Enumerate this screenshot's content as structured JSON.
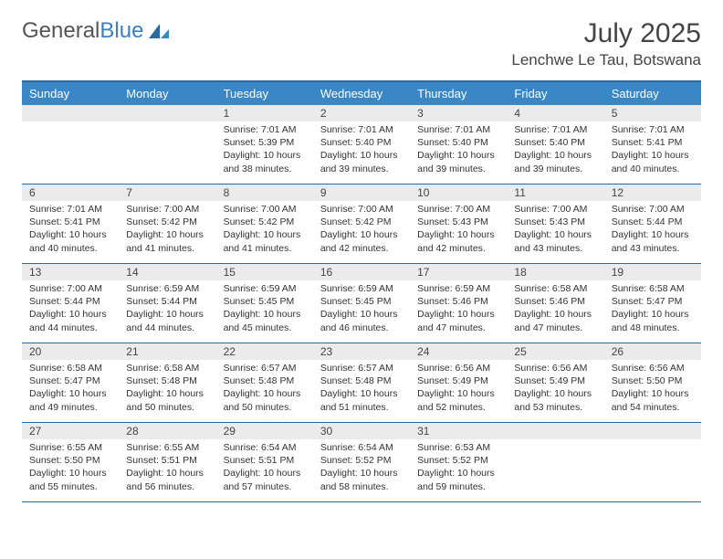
{
  "brand": {
    "part1": "General",
    "part2": "Blue"
  },
  "title": "July 2025",
  "location": "Lenchwe Le Tau, Botswana",
  "colors": {
    "header_bg": "#3a87c7",
    "header_rule": "#2b6aa0",
    "daynum_bg": "#ebebeb",
    "brand_blue": "#3a7fc4"
  },
  "weekdays": [
    "Sunday",
    "Monday",
    "Tuesday",
    "Wednesday",
    "Thursday",
    "Friday",
    "Saturday"
  ],
  "weeks": [
    [
      {
        "n": "",
        "sr": "",
        "ss": "",
        "dl": ""
      },
      {
        "n": "",
        "sr": "",
        "ss": "",
        "dl": ""
      },
      {
        "n": "1",
        "sr": "Sunrise: 7:01 AM",
        "ss": "Sunset: 5:39 PM",
        "dl": "Daylight: 10 hours and 38 minutes."
      },
      {
        "n": "2",
        "sr": "Sunrise: 7:01 AM",
        "ss": "Sunset: 5:40 PM",
        "dl": "Daylight: 10 hours and 39 minutes."
      },
      {
        "n": "3",
        "sr": "Sunrise: 7:01 AM",
        "ss": "Sunset: 5:40 PM",
        "dl": "Daylight: 10 hours and 39 minutes."
      },
      {
        "n": "4",
        "sr": "Sunrise: 7:01 AM",
        "ss": "Sunset: 5:40 PM",
        "dl": "Daylight: 10 hours and 39 minutes."
      },
      {
        "n": "5",
        "sr": "Sunrise: 7:01 AM",
        "ss": "Sunset: 5:41 PM",
        "dl": "Daylight: 10 hours and 40 minutes."
      }
    ],
    [
      {
        "n": "6",
        "sr": "Sunrise: 7:01 AM",
        "ss": "Sunset: 5:41 PM",
        "dl": "Daylight: 10 hours and 40 minutes."
      },
      {
        "n": "7",
        "sr": "Sunrise: 7:00 AM",
        "ss": "Sunset: 5:42 PM",
        "dl": "Daylight: 10 hours and 41 minutes."
      },
      {
        "n": "8",
        "sr": "Sunrise: 7:00 AM",
        "ss": "Sunset: 5:42 PM",
        "dl": "Daylight: 10 hours and 41 minutes."
      },
      {
        "n": "9",
        "sr": "Sunrise: 7:00 AM",
        "ss": "Sunset: 5:42 PM",
        "dl": "Daylight: 10 hours and 42 minutes."
      },
      {
        "n": "10",
        "sr": "Sunrise: 7:00 AM",
        "ss": "Sunset: 5:43 PM",
        "dl": "Daylight: 10 hours and 42 minutes."
      },
      {
        "n": "11",
        "sr": "Sunrise: 7:00 AM",
        "ss": "Sunset: 5:43 PM",
        "dl": "Daylight: 10 hours and 43 minutes."
      },
      {
        "n": "12",
        "sr": "Sunrise: 7:00 AM",
        "ss": "Sunset: 5:44 PM",
        "dl": "Daylight: 10 hours and 43 minutes."
      }
    ],
    [
      {
        "n": "13",
        "sr": "Sunrise: 7:00 AM",
        "ss": "Sunset: 5:44 PM",
        "dl": "Daylight: 10 hours and 44 minutes."
      },
      {
        "n": "14",
        "sr": "Sunrise: 6:59 AM",
        "ss": "Sunset: 5:44 PM",
        "dl": "Daylight: 10 hours and 44 minutes."
      },
      {
        "n": "15",
        "sr": "Sunrise: 6:59 AM",
        "ss": "Sunset: 5:45 PM",
        "dl": "Daylight: 10 hours and 45 minutes."
      },
      {
        "n": "16",
        "sr": "Sunrise: 6:59 AM",
        "ss": "Sunset: 5:45 PM",
        "dl": "Daylight: 10 hours and 46 minutes."
      },
      {
        "n": "17",
        "sr": "Sunrise: 6:59 AM",
        "ss": "Sunset: 5:46 PM",
        "dl": "Daylight: 10 hours and 47 minutes."
      },
      {
        "n": "18",
        "sr": "Sunrise: 6:58 AM",
        "ss": "Sunset: 5:46 PM",
        "dl": "Daylight: 10 hours and 47 minutes."
      },
      {
        "n": "19",
        "sr": "Sunrise: 6:58 AM",
        "ss": "Sunset: 5:47 PM",
        "dl": "Daylight: 10 hours and 48 minutes."
      }
    ],
    [
      {
        "n": "20",
        "sr": "Sunrise: 6:58 AM",
        "ss": "Sunset: 5:47 PM",
        "dl": "Daylight: 10 hours and 49 minutes."
      },
      {
        "n": "21",
        "sr": "Sunrise: 6:58 AM",
        "ss": "Sunset: 5:48 PM",
        "dl": "Daylight: 10 hours and 50 minutes."
      },
      {
        "n": "22",
        "sr": "Sunrise: 6:57 AM",
        "ss": "Sunset: 5:48 PM",
        "dl": "Daylight: 10 hours and 50 minutes."
      },
      {
        "n": "23",
        "sr": "Sunrise: 6:57 AM",
        "ss": "Sunset: 5:48 PM",
        "dl": "Daylight: 10 hours and 51 minutes."
      },
      {
        "n": "24",
        "sr": "Sunrise: 6:56 AM",
        "ss": "Sunset: 5:49 PM",
        "dl": "Daylight: 10 hours and 52 minutes."
      },
      {
        "n": "25",
        "sr": "Sunrise: 6:56 AM",
        "ss": "Sunset: 5:49 PM",
        "dl": "Daylight: 10 hours and 53 minutes."
      },
      {
        "n": "26",
        "sr": "Sunrise: 6:56 AM",
        "ss": "Sunset: 5:50 PM",
        "dl": "Daylight: 10 hours and 54 minutes."
      }
    ],
    [
      {
        "n": "27",
        "sr": "Sunrise: 6:55 AM",
        "ss": "Sunset: 5:50 PM",
        "dl": "Daylight: 10 hours and 55 minutes."
      },
      {
        "n": "28",
        "sr": "Sunrise: 6:55 AM",
        "ss": "Sunset: 5:51 PM",
        "dl": "Daylight: 10 hours and 56 minutes."
      },
      {
        "n": "29",
        "sr": "Sunrise: 6:54 AM",
        "ss": "Sunset: 5:51 PM",
        "dl": "Daylight: 10 hours and 57 minutes."
      },
      {
        "n": "30",
        "sr": "Sunrise: 6:54 AM",
        "ss": "Sunset: 5:52 PM",
        "dl": "Daylight: 10 hours and 58 minutes."
      },
      {
        "n": "31",
        "sr": "Sunrise: 6:53 AM",
        "ss": "Sunset: 5:52 PM",
        "dl": "Daylight: 10 hours and 59 minutes."
      },
      {
        "n": "",
        "sr": "",
        "ss": "",
        "dl": ""
      },
      {
        "n": "",
        "sr": "",
        "ss": "",
        "dl": ""
      }
    ]
  ]
}
